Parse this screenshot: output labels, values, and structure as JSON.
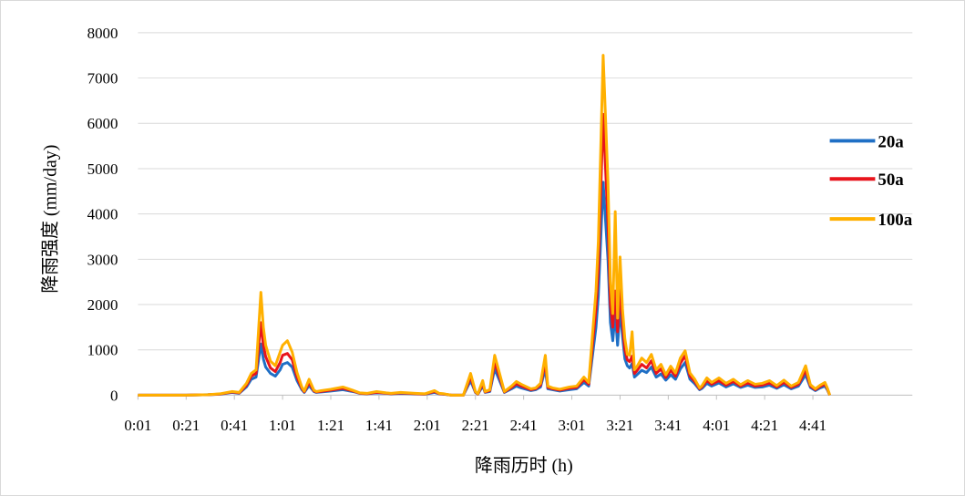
{
  "chart_data": {
    "type": "line",
    "xlabel": "降雨历时  (h)",
    "ylabel": "降雨强度 (mm/day)",
    "ylim": [
      0,
      8000
    ],
    "yticks": [
      "0",
      "1000",
      "2000",
      "3000",
      "4000",
      "5000",
      "6000",
      "7000",
      "8000"
    ],
    "x_tick_labels": [
      "0:01",
      "0:21",
      "0:41",
      "1:01",
      "1:21",
      "1:41",
      "2:01",
      "2:21",
      "2:41",
      "3:01",
      "3:21",
      "3:41",
      "4:01",
      "4:21",
      "4:41"
    ],
    "x_minutes": [
      1,
      15,
      21,
      30,
      35,
      40,
      43,
      46,
      48,
      50,
      52,
      53,
      54,
      56,
      58,
      60,
      61,
      63,
      65,
      67,
      69,
      70,
      72,
      74,
      75,
      77,
      81,
      86,
      90,
      91,
      93,
      96,
      100,
      104,
      106,
      110,
      116,
      120,
      124,
      126,
      128,
      131,
      136,
      139,
      141,
      142,
      144,
      145,
      147,
      149,
      151,
      153,
      156,
      158,
      160,
      162,
      164,
      166,
      168,
      170,
      171,
      173,
      176,
      180,
      183,
      186,
      188,
      191,
      192,
      194,
      196,
      197,
      198,
      199,
      200,
      201,
      202,
      203,
      204,
      205,
      206,
      207,
      208,
      210,
      212,
      214,
      216,
      218,
      220,
      222,
      224,
      226,
      228,
      230,
      232,
      234,
      235,
      237,
      239,
      242,
      245,
      248,
      251,
      254,
      257,
      260,
      263,
      266,
      269,
      272,
      275,
      278,
      280,
      282,
      284,
      286,
      287,
      288
    ],
    "grid": true,
    "legend_position": "right",
    "series": [
      {
        "name": "20a",
        "color": "#1f6fc5",
        "values": [
          0,
          0,
          0,
          10,
          20,
          60,
          40,
          180,
          350,
          400,
          1130,
          800,
          620,
          480,
          420,
          560,
          680,
          720,
          620,
          320,
          120,
          60,
          210,
          80,
          60,
          70,
          90,
          120,
          80,
          70,
          40,
          30,
          50,
          40,
          30,
          40,
          30,
          20,
          60,
          30,
          20,
          0,
          0,
          320,
          60,
          20,
          200,
          60,
          80,
          580,
          320,
          60,
          140,
          200,
          160,
          130,
          100,
          120,
          180,
          580,
          140,
          120,
          90,
          120,
          140,
          280,
          200,
          1500,
          2200,
          4700,
          3000,
          1600,
          1200,
          1800,
          1100,
          1900,
          1300,
          800,
          650,
          600,
          700,
          400,
          450,
          550,
          500,
          620,
          400,
          470,
          330,
          450,
          350,
          580,
          720,
          350,
          250,
          120,
          150,
          260,
          200,
          270,
          180,
          250,
          170,
          220,
          170,
          180,
          220,
          150,
          230,
          140,
          200,
          450,
          170,
          100,
          160,
          200,
          120,
          0
        ]
      },
      {
        "name": "50a",
        "color": "#e8141c",
        "values": [
          0,
          0,
          0,
          10,
          25,
          70,
          50,
          220,
          420,
          480,
          1600,
          1100,
          850,
          600,
          520,
          720,
          880,
          920,
          780,
          400,
          150,
          75,
          280,
          95,
          70,
          85,
          110,
          150,
          95,
          80,
          45,
          35,
          65,
          45,
          35,
          50,
          35,
          25,
          80,
          35,
          25,
          0,
          0,
          400,
          70,
          25,
          260,
          70,
          100,
          730,
          400,
          70,
          170,
          250,
          200,
          160,
          120,
          140,
          220,
          730,
          170,
          140,
          110,
          150,
          170,
          340,
          240,
          1900,
          2800,
          6200,
          3800,
          2000,
          1500,
          2300,
          1400,
          2400,
          1600,
          1000,
          780,
          740,
          860,
          480,
          540,
          680,
          600,
          760,
          480,
          580,
          390,
          550,
          420,
          700,
          870,
          420,
          300,
          140,
          180,
          320,
          240,
          320,
          220,
          300,
          200,
          270,
          200,
          220,
          270,
          180,
          280,
          170,
          240,
          550,
          200,
          120,
          190,
          240,
          140,
          0
        ]
      },
      {
        "name": "100a",
        "color": "#ffb000",
        "values": [
          0,
          0,
          0,
          10,
          30,
          80,
          60,
          260,
          480,
          560,
          2270,
          1500,
          1100,
          750,
          650,
          950,
          1100,
          1200,
          950,
          500,
          180,
          90,
          350,
          110,
          80,
          100,
          130,
          180,
          110,
          90,
          50,
          40,
          80,
          50,
          40,
          60,
          40,
          30,
          100,
          40,
          30,
          0,
          0,
          480,
          80,
          30,
          320,
          80,
          120,
          880,
          480,
          80,
          200,
          300,
          240,
          190,
          140,
          160,
          260,
          880,
          200,
          160,
          130,
          180,
          200,
          400,
          280,
          2300,
          3400,
          7500,
          4700,
          2500,
          1800,
          4050,
          1700,
          3050,
          1900,
          1250,
          900,
          880,
          1400,
          560,
          630,
          820,
          720,
          900,
          560,
          680,
          450,
          640,
          490,
          820,
          980,
          490,
          350,
          160,
          210,
          380,
          280,
          380,
          260,
          350,
          230,
          320,
          240,
          260,
          320,
          210,
          330,
          200,
          280,
          650,
          230,
          140,
          220,
          280,
          160,
          0
        ]
      }
    ]
  }
}
